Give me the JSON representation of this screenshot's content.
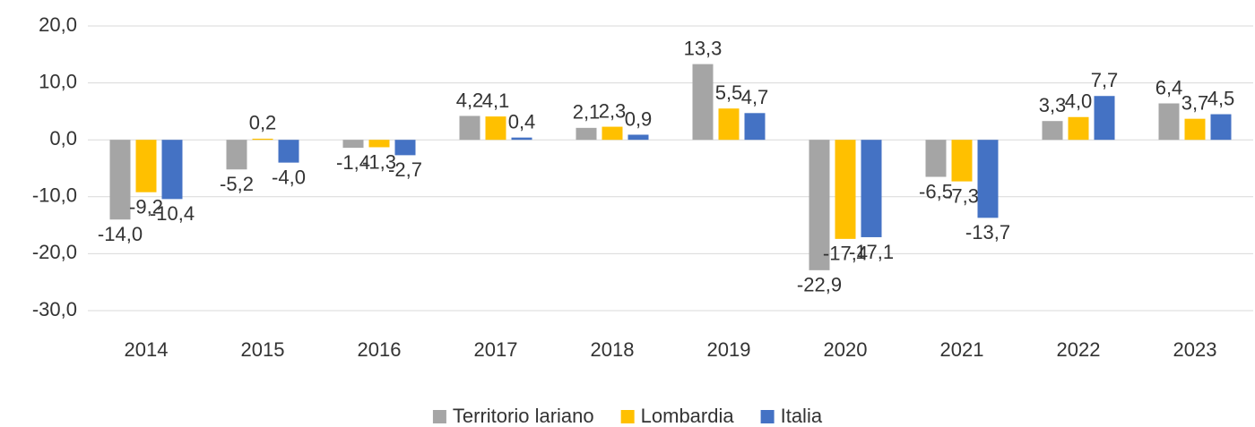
{
  "chart_data": {
    "type": "bar",
    "categories": [
      "2014",
      "2015",
      "2016",
      "2017",
      "2018",
      "2019",
      "2020",
      "2021",
      "2022",
      "2023"
    ],
    "series": [
      {
        "name": "Territorio lariano",
        "color": "#a5a5a5",
        "values": [
          -14.0,
          -5.2,
          -1.4,
          4.2,
          2.1,
          13.3,
          -22.9,
          -6.5,
          3.3,
          6.4
        ],
        "value_labels": [
          "-14,0",
          "-5,2",
          "-1,4",
          "4,2",
          "2,1",
          "13,3",
          "-22,9",
          "-6,5",
          "3,3",
          "6,4"
        ]
      },
      {
        "name": "Lombardia",
        "color": "#ffc000",
        "values": [
          -9.2,
          0.2,
          -1.3,
          4.1,
          2.3,
          5.5,
          -17.4,
          -7.3,
          4.0,
          3.7
        ],
        "value_labels": [
          "-9,2",
          "0,2",
          "-1,3",
          "4,1",
          "2,3",
          "5,5",
          "-17,4",
          "-7,3",
          "4,0",
          "3,7"
        ]
      },
      {
        "name": "Italia",
        "color": "#4472c4",
        "values": [
          -10.4,
          -4.0,
          -2.7,
          0.4,
          0.9,
          4.7,
          -17.1,
          -13.7,
          7.7,
          4.5
        ],
        "value_labels": [
          "-10,4",
          "-4,0",
          "-2,7",
          "0,4",
          "0,9",
          "4,7",
          "-17,1",
          "-13,7",
          "7,7",
          "4,5"
        ]
      }
    ],
    "ylim": [
      -30,
      20
    ],
    "yticks": [
      {
        "value": -30,
        "label": "-30,0"
      },
      {
        "value": -20,
        "label": "-20,0"
      },
      {
        "value": -10,
        "label": "-10,0"
      },
      {
        "value": 0,
        "label": "0,0"
      },
      {
        "value": 10,
        "label": "10,0"
      },
      {
        "value": 20,
        "label": "20,0"
      }
    ],
    "grid": true,
    "legend": "bottom"
  }
}
